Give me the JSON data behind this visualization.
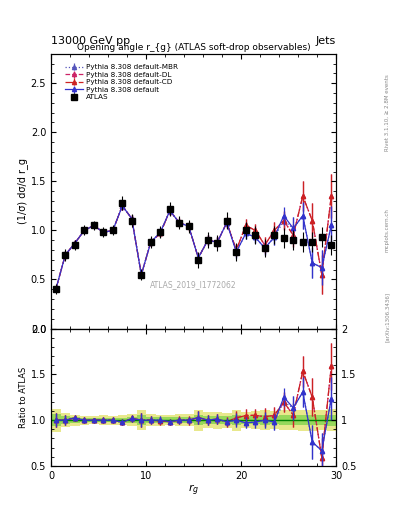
{
  "title_top": "13000 GeV pp",
  "title_right": "Jets",
  "plot_title": "Opening angle r_{g} (ATLAS soft-drop observables)",
  "xlabel": "r_{g}",
  "ylabel_main": "(1/σ) dσ/d r_g",
  "ylabel_ratio": "Ratio to ATLAS",
  "watermark": "ATLAS_2019_I1772062",
  "rivet_label": "Rivet 3.1.10, ≥ 2.8M events",
  "arxiv_label": "[arXiv:1306.3436]",
  "mcplots_label": "mcplots.cern.ch",
  "xlim": [
    0,
    30
  ],
  "ylim_main": [
    0.0,
    2.8
  ],
  "ylim_ratio": [
    0.5,
    2.0
  ],
  "atlas_x": [
    0.5,
    1.5,
    2.5,
    3.5,
    4.5,
    5.5,
    6.5,
    7.5,
    8.5,
    9.5,
    10.5,
    11.5,
    12.5,
    13.5,
    14.5,
    15.5,
    16.5,
    17.5,
    18.5,
    19.5,
    20.5,
    21.5,
    22.5,
    23.5,
    24.5,
    25.5,
    26.5,
    27.5,
    28.5,
    29.5
  ],
  "atlas_y": [
    0.4,
    0.75,
    0.85,
    1.0,
    1.05,
    0.98,
    1.0,
    1.28,
    1.1,
    0.55,
    0.88,
    0.98,
    1.22,
    1.08,
    1.04,
    0.7,
    0.9,
    0.87,
    1.1,
    0.78,
    1.0,
    0.95,
    0.82,
    0.95,
    0.92,
    0.9,
    0.88,
    0.88,
    0.93,
    0.85
  ],
  "atlas_yerr": [
    0.05,
    0.06,
    0.05,
    0.05,
    0.05,
    0.05,
    0.05,
    0.07,
    0.07,
    0.06,
    0.06,
    0.06,
    0.07,
    0.07,
    0.07,
    0.08,
    0.08,
    0.08,
    0.09,
    0.09,
    0.09,
    0.09,
    0.09,
    0.09,
    0.1,
    0.1,
    0.1,
    0.1,
    0.1,
    0.1
  ],
  "pythia_default_x": [
    0.5,
    1.5,
    2.5,
    3.5,
    4.5,
    5.5,
    6.5,
    7.5,
    8.5,
    9.5,
    10.5,
    11.5,
    12.5,
    13.5,
    14.5,
    15.5,
    16.5,
    17.5,
    18.5,
    19.5,
    20.5,
    21.5,
    22.5,
    23.5,
    24.5,
    25.5,
    26.5,
    27.5,
    28.5,
    29.5
  ],
  "pythia_default_y": [
    0.4,
    0.75,
    0.87,
    1.0,
    1.05,
    0.98,
    1.0,
    1.25,
    1.12,
    0.55,
    0.88,
    0.98,
    1.2,
    1.08,
    1.04,
    0.72,
    0.9,
    0.88,
    1.08,
    0.78,
    0.97,
    0.93,
    0.82,
    0.93,
    1.15,
    1.02,
    1.15,
    0.67,
    0.62,
    1.05
  ],
  "pythia_default_yerr": [
    0.03,
    0.04,
    0.03,
    0.03,
    0.03,
    0.03,
    0.03,
    0.04,
    0.04,
    0.04,
    0.04,
    0.04,
    0.04,
    0.04,
    0.04,
    0.05,
    0.05,
    0.05,
    0.05,
    0.06,
    0.06,
    0.06,
    0.07,
    0.08,
    0.09,
    0.12,
    0.14,
    0.16,
    0.18,
    0.2
  ],
  "pythia_cd_x": [
    0.5,
    1.5,
    2.5,
    3.5,
    4.5,
    5.5,
    6.5,
    7.5,
    8.5,
    9.5,
    10.5,
    11.5,
    12.5,
    13.5,
    14.5,
    15.5,
    16.5,
    17.5,
    18.5,
    19.5,
    20.5,
    21.5,
    22.5,
    23.5,
    24.5,
    25.5,
    26.5,
    27.5,
    28.5,
    29.5
  ],
  "pythia_cd_y": [
    0.4,
    0.75,
    0.87,
    1.0,
    1.05,
    0.98,
    1.0,
    1.25,
    1.12,
    0.55,
    0.88,
    0.97,
    1.2,
    1.08,
    1.04,
    0.72,
    0.9,
    0.88,
    1.08,
    0.8,
    1.05,
    1.0,
    0.85,
    1.0,
    1.1,
    0.95,
    1.35,
    1.1,
    0.55,
    1.35
  ],
  "pythia_cd_yerr": [
    0.03,
    0.04,
    0.03,
    0.03,
    0.03,
    0.03,
    0.03,
    0.04,
    0.04,
    0.04,
    0.04,
    0.04,
    0.04,
    0.05,
    0.05,
    0.05,
    0.05,
    0.05,
    0.06,
    0.06,
    0.07,
    0.07,
    0.08,
    0.09,
    0.1,
    0.12,
    0.15,
    0.18,
    0.2,
    0.22
  ],
  "pythia_dl_x": [
    0.5,
    1.5,
    2.5,
    3.5,
    4.5,
    5.5,
    6.5,
    7.5,
    8.5,
    9.5,
    10.5,
    11.5,
    12.5,
    13.5,
    14.5,
    15.5,
    16.5,
    17.5,
    18.5,
    19.5,
    20.5,
    21.5,
    22.5,
    23.5,
    24.5,
    25.5,
    26.5,
    27.5,
    28.5,
    29.5
  ],
  "pythia_dl_y": [
    0.4,
    0.75,
    0.87,
    1.0,
    1.05,
    0.98,
    1.0,
    1.25,
    1.12,
    0.55,
    0.88,
    0.97,
    1.2,
    1.08,
    1.04,
    0.72,
    0.9,
    0.88,
    1.08,
    0.8,
    1.05,
    1.0,
    0.85,
    1.0,
    1.1,
    0.95,
    1.35,
    1.1,
    0.55,
    1.35
  ],
  "pythia_dl_yerr": [
    0.03,
    0.04,
    0.03,
    0.03,
    0.03,
    0.03,
    0.03,
    0.04,
    0.04,
    0.04,
    0.04,
    0.04,
    0.04,
    0.05,
    0.05,
    0.05,
    0.05,
    0.05,
    0.06,
    0.06,
    0.07,
    0.07,
    0.08,
    0.09,
    0.1,
    0.12,
    0.15,
    0.18,
    0.2,
    0.22
  ],
  "pythia_mbr_x": [
    0.5,
    1.5,
    2.5,
    3.5,
    4.5,
    5.5,
    6.5,
    7.5,
    8.5,
    9.5,
    10.5,
    11.5,
    12.5,
    13.5,
    14.5,
    15.5,
    16.5,
    17.5,
    18.5,
    19.5,
    20.5,
    21.5,
    22.5,
    23.5,
    24.5,
    25.5,
    26.5,
    27.5,
    28.5,
    29.5
  ],
  "pythia_mbr_y": [
    0.4,
    0.75,
    0.87,
    1.0,
    1.05,
    0.98,
    1.0,
    1.25,
    1.12,
    0.55,
    0.88,
    0.98,
    1.2,
    1.08,
    1.04,
    0.72,
    0.9,
    0.88,
    1.08,
    0.78,
    0.97,
    0.93,
    0.82,
    0.93,
    1.1,
    1.02,
    1.15,
    0.67,
    0.62,
    1.05
  ],
  "pythia_mbr_yerr": [
    0.03,
    0.04,
    0.03,
    0.03,
    0.03,
    0.03,
    0.03,
    0.04,
    0.04,
    0.04,
    0.04,
    0.04,
    0.04,
    0.04,
    0.04,
    0.05,
    0.05,
    0.05,
    0.05,
    0.06,
    0.06,
    0.06,
    0.07,
    0.08,
    0.09,
    0.12,
    0.14,
    0.16,
    0.18,
    0.2
  ],
  "color_atlas": "#000000",
  "color_default": "#3333cc",
  "color_cd": "#cc2222",
  "color_dl": "#cc2266",
  "color_mbr": "#5555bb",
  "atlas_stat_band_color": "#00bb00",
  "atlas_stat_band_alpha": 0.35,
  "atlas_sys_band_color": "#cccc00",
  "atlas_sys_band_alpha": 0.45
}
